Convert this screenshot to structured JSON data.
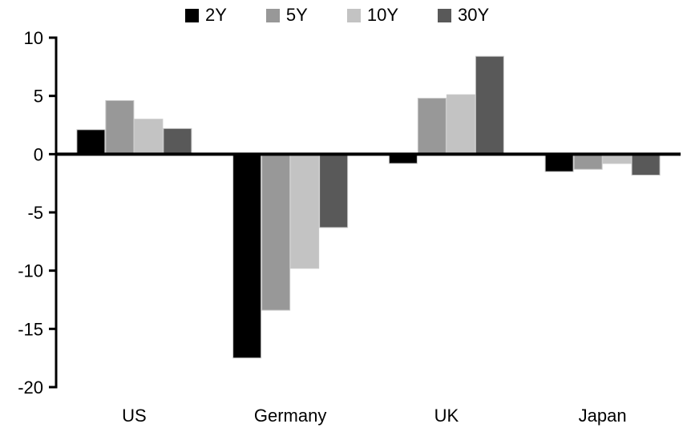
{
  "colors": {
    "background": "#ffffff",
    "axis": "#000000",
    "text": "#000000",
    "bar_border": "#c8c8c8"
  },
  "chart_data": {
    "type": "bar",
    "title": "",
    "xlabel": "",
    "ylabel": "",
    "categories": [
      "US",
      "Germany",
      "UK",
      "Japan"
    ],
    "series": [
      {
        "name": "2Y",
        "color": "#000000",
        "values": [
          2.1,
          -17.5,
          -0.8,
          -1.5
        ]
      },
      {
        "name": "5Y",
        "color": "#989898",
        "values": [
          4.6,
          -13.4,
          4.8,
          -1.3
        ]
      },
      {
        "name": "10Y",
        "color": "#c3c3c3",
        "values": [
          3.0,
          -9.8,
          5.1,
          -0.8
        ]
      },
      {
        "name": "30Y",
        "color": "#595959",
        "values": [
          2.2,
          -6.3,
          8.4,
          -1.8
        ]
      }
    ],
    "y_axis": {
      "min": -20,
      "max": 10,
      "ticks": [
        10,
        5,
        0,
        -5,
        -10,
        -15,
        -20
      ]
    },
    "grid": false,
    "zero_line": true,
    "legend_position": "top"
  }
}
